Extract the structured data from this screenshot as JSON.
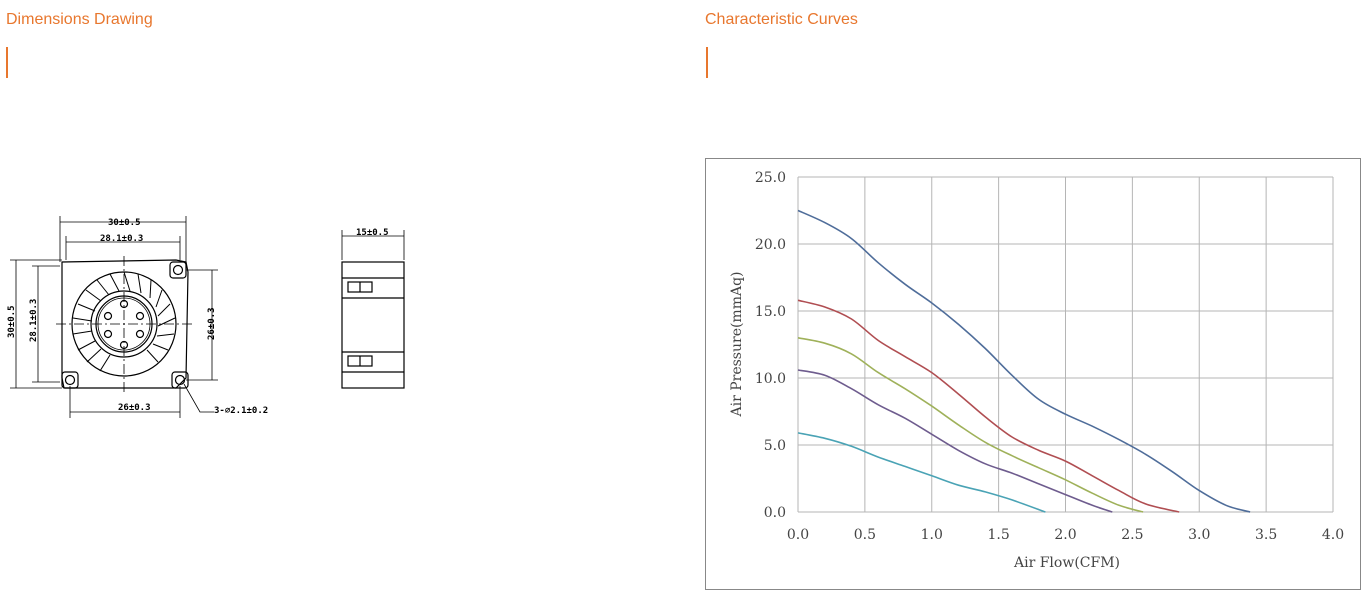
{
  "left_section": {
    "title": "Dimensions Drawing"
  },
  "right_section": {
    "title": "Characteristic Curves"
  },
  "drawing": {
    "labels": {
      "top_outer": "30±0.5",
      "top_inner": "28.1±0.3",
      "left_outer": "30±0.5",
      "left_inner": "28.1±0.3",
      "right": "26±0.3",
      "bottom": "26±0.3",
      "holes": "3-⌀2.1±0.2",
      "side_width": "15±0.5"
    }
  },
  "chart_data": {
    "type": "line",
    "xlabel": "Air Flow(CFM)",
    "ylabel": "Air Pressure(mmAq)",
    "xlim": [
      0,
      4
    ],
    "ylim": [
      0,
      25
    ],
    "x_ticks": [
      "0.0",
      "0.5",
      "1.0",
      "1.5",
      "2.0",
      "2.5",
      "3.0",
      "3.5",
      "4.0"
    ],
    "y_ticks": [
      "0.0",
      "5.0",
      "10.0",
      "15.0",
      "20.0",
      "25.0"
    ],
    "grid": true,
    "series": [
      {
        "color": "#4f6d9a",
        "points": [
          [
            0,
            22.5
          ],
          [
            0.2,
            21.6
          ],
          [
            0.4,
            20.4
          ],
          [
            0.6,
            18.6
          ],
          [
            0.8,
            17.0
          ],
          [
            1.0,
            15.6
          ],
          [
            1.2,
            14.0
          ],
          [
            1.4,
            12.2
          ],
          [
            1.6,
            10.2
          ],
          [
            1.8,
            8.4
          ],
          [
            2.0,
            7.3
          ],
          [
            2.2,
            6.4
          ],
          [
            2.4,
            5.4
          ],
          [
            2.6,
            4.3
          ],
          [
            2.8,
            3.0
          ],
          [
            3.0,
            1.6
          ],
          [
            3.2,
            0.5
          ],
          [
            3.38,
            0
          ]
        ]
      },
      {
        "color": "#b04e52",
        "points": [
          [
            0,
            15.8
          ],
          [
            0.2,
            15.3
          ],
          [
            0.4,
            14.4
          ],
          [
            0.6,
            12.8
          ],
          [
            0.8,
            11.6
          ],
          [
            1.0,
            10.4
          ],
          [
            1.2,
            8.8
          ],
          [
            1.4,
            7.1
          ],
          [
            1.6,
            5.6
          ],
          [
            1.8,
            4.6
          ],
          [
            2.0,
            3.8
          ],
          [
            2.2,
            2.7
          ],
          [
            2.4,
            1.6
          ],
          [
            2.6,
            0.6
          ],
          [
            2.85,
            0
          ]
        ]
      },
      {
        "color": "#9fb15a",
        "points": [
          [
            0,
            13.0
          ],
          [
            0.2,
            12.6
          ],
          [
            0.4,
            11.8
          ],
          [
            0.6,
            10.4
          ],
          [
            0.8,
            9.2
          ],
          [
            1.0,
            7.9
          ],
          [
            1.2,
            6.5
          ],
          [
            1.4,
            5.2
          ],
          [
            1.6,
            4.2
          ],
          [
            1.8,
            3.3
          ],
          [
            2.0,
            2.4
          ],
          [
            2.2,
            1.4
          ],
          [
            2.4,
            0.5
          ],
          [
            2.58,
            0
          ]
        ]
      },
      {
        "color": "#6e5c8e",
        "points": [
          [
            0,
            10.6
          ],
          [
            0.2,
            10.2
          ],
          [
            0.4,
            9.2
          ],
          [
            0.6,
            8.0
          ],
          [
            0.8,
            7.0
          ],
          [
            1.0,
            5.8
          ],
          [
            1.2,
            4.6
          ],
          [
            1.4,
            3.6
          ],
          [
            1.6,
            2.9
          ],
          [
            1.8,
            2.1
          ],
          [
            2.0,
            1.3
          ],
          [
            2.2,
            0.5
          ],
          [
            2.35,
            0
          ]
        ]
      },
      {
        "color": "#4aa3b5",
        "points": [
          [
            0,
            5.9
          ],
          [
            0.2,
            5.5
          ],
          [
            0.4,
            4.9
          ],
          [
            0.6,
            4.1
          ],
          [
            0.8,
            3.4
          ],
          [
            1.0,
            2.7
          ],
          [
            1.2,
            2.0
          ],
          [
            1.4,
            1.5
          ],
          [
            1.6,
            0.9
          ],
          [
            1.85,
            0
          ]
        ]
      }
    ]
  }
}
